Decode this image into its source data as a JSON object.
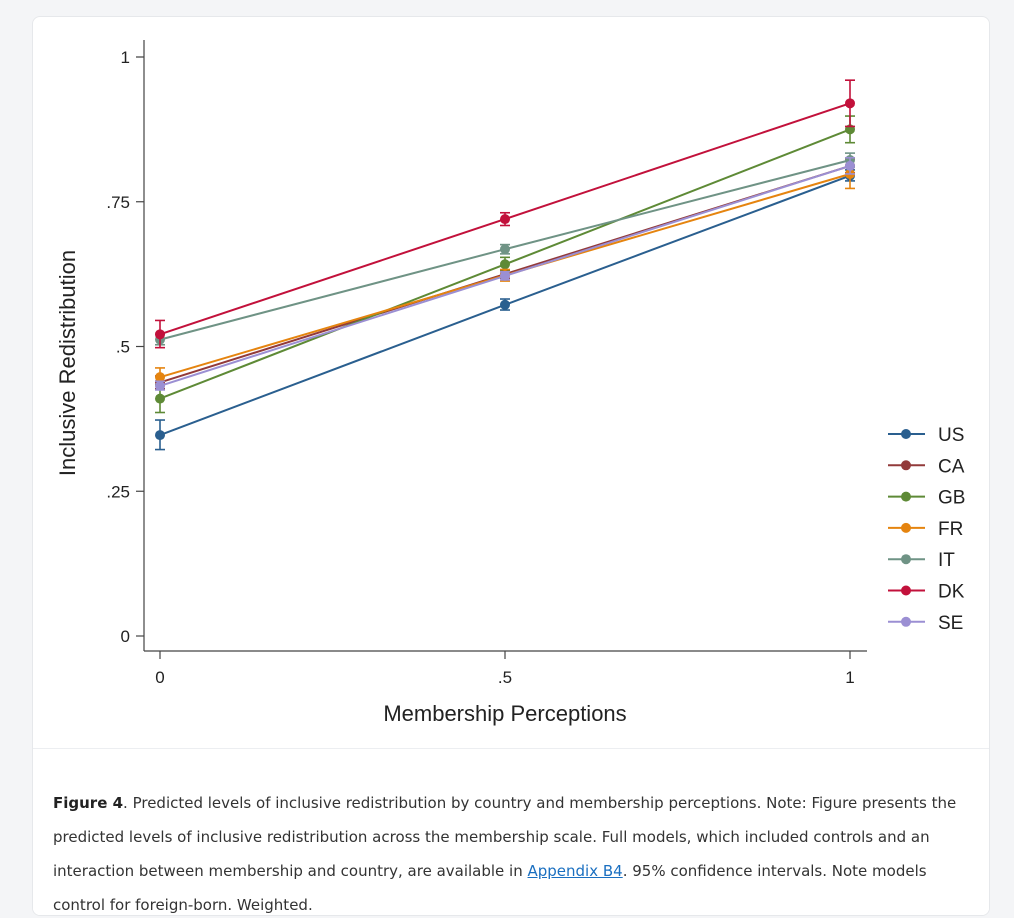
{
  "chart_data": {
    "type": "line",
    "xlabel": "Membership Perceptions",
    "ylabel": "Inclusive Redistribution",
    "x": [
      0,
      0.5,
      1
    ],
    "xlim": [
      0,
      1
    ],
    "ylim": [
      0,
      1
    ],
    "x_ticks": [
      {
        "value": 0,
        "label": "0"
      },
      {
        "value": 0.5,
        "label": ".5"
      },
      {
        "value": 1,
        "label": "1"
      }
    ],
    "y_ticks": [
      {
        "value": 0,
        "label": "0"
      },
      {
        "value": 0.25,
        "label": ".25"
      },
      {
        "value": 0.5,
        "label": ".5"
      },
      {
        "value": 0.75,
        "label": ".75"
      },
      {
        "value": 1,
        "label": "1"
      }
    ],
    "grid": false,
    "legend_position": "right",
    "series": [
      {
        "name": "US",
        "color": "#2a5f8f",
        "values": [
          0.347,
          0.572,
          0.795
        ],
        "ci_low": [
          0.322,
          0.563,
          0.786
        ],
        "ci_high": [
          0.373,
          0.582,
          0.805
        ]
      },
      {
        "name": "CA",
        "color": "#923a3a",
        "values": [
          0.438,
          0.625,
          0.812
        ],
        "ci_low": [
          0.427,
          0.618,
          0.8
        ],
        "ci_high": [
          0.449,
          0.632,
          0.825
        ]
      },
      {
        "name": "GB",
        "color": "#5e8a36",
        "values": [
          0.41,
          0.642,
          0.875
        ],
        "ci_low": [
          0.386,
          0.63,
          0.852
        ],
        "ci_high": [
          0.434,
          0.654,
          0.898
        ]
      },
      {
        "name": "FR",
        "color": "#e5840f",
        "values": [
          0.447,
          0.623,
          0.798
        ],
        "ci_low": [
          0.432,
          0.613,
          0.773
        ],
        "ci_high": [
          0.463,
          0.633,
          0.823
        ]
      },
      {
        "name": "IT",
        "color": "#6f9385",
        "values": [
          0.512,
          0.668,
          0.822
        ],
        "ci_low": [
          0.503,
          0.66,
          0.81
        ],
        "ci_high": [
          0.521,
          0.676,
          0.834
        ]
      },
      {
        "name": "DK",
        "color": "#c2113b",
        "values": [
          0.521,
          0.72,
          0.92
        ],
        "ci_low": [
          0.498,
          0.709,
          0.88
        ],
        "ci_high": [
          0.545,
          0.731,
          0.96
        ]
      },
      {
        "name": "SE",
        "color": "#9b8fd3",
        "values": [
          0.432,
          0.622,
          0.812
        ],
        "ci_low": [
          0.425,
          0.615,
          0.798
        ],
        "ci_high": [
          0.44,
          0.629,
          0.826
        ]
      }
    ]
  },
  "caption": {
    "figure_label": "Figure 4",
    "text_before_link": ". Predicted levels of inclusive redistribution by country and membership perceptions. Note: Figure presents the predicted levels of inclusive redistribution across the membership scale. Full models, which included controls and an interaction between membership and country, are available in ",
    "link_text": "Appendix B4",
    "text_after_link": ". 95% confidence intervals. Note models control for foreign-born. Weighted."
  }
}
